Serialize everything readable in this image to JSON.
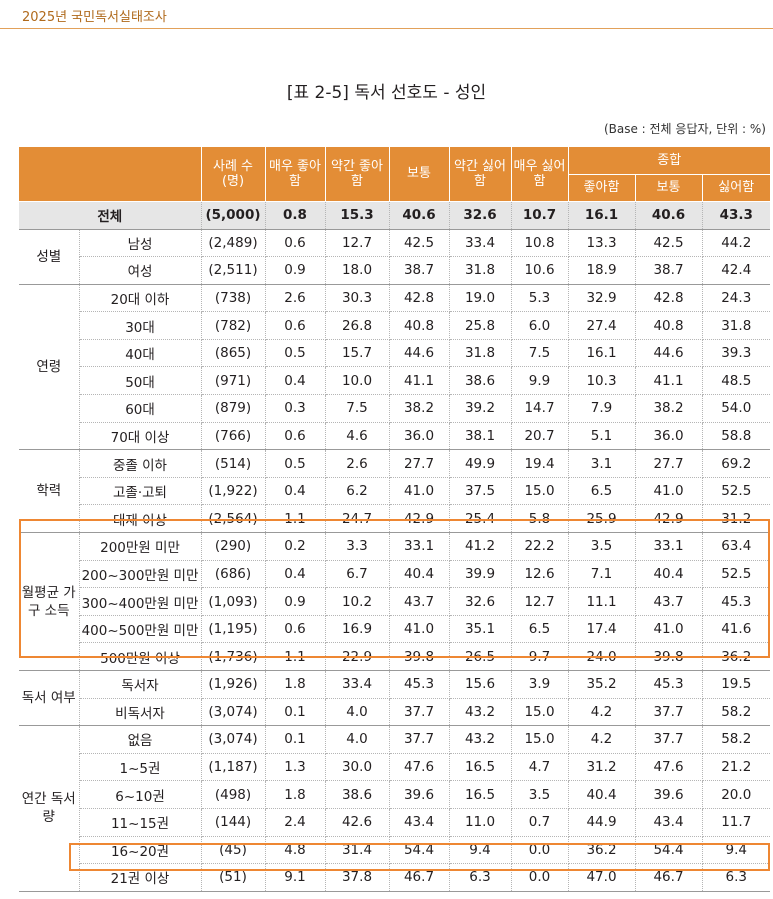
{
  "header": {
    "text": "2025년 국민독서실태조사"
  },
  "title": "[표 2-5] 독서 선호도 - 성인",
  "base_note": "(Base : 전체 응답자, 단위 : %)",
  "columns": {
    "cases": "사례 수 (명)",
    "very_like": "매우 좋아함",
    "some_like": "약간 좋아함",
    "neutral": "보통",
    "some_dislike": "약간 싫어함",
    "very_dislike": "매우 싫어함",
    "summary": "종합",
    "sum_like": "좋아함",
    "sum_neutral": "보통",
    "sum_dislike": "싫어함"
  },
  "total": {
    "label": "전체",
    "values": [
      "(5,000)",
      "0.8",
      "15.3",
      "40.6",
      "32.6",
      "10.7",
      "16.1",
      "40.6",
      "43.3"
    ]
  },
  "groups": [
    {
      "name": "성별",
      "rows": [
        {
          "label": "남성",
          "values": [
            "(2,489)",
            "0.6",
            "12.7",
            "42.5",
            "33.4",
            "10.8",
            "13.3",
            "42.5",
            "44.2"
          ]
        },
        {
          "label": "여성",
          "values": [
            "(2,511)",
            "0.9",
            "18.0",
            "38.7",
            "31.8",
            "10.6",
            "18.9",
            "38.7",
            "42.4"
          ]
        }
      ]
    },
    {
      "name": "연령",
      "rows": [
        {
          "label": "20대 이하",
          "values": [
            "(738)",
            "2.6",
            "30.3",
            "42.8",
            "19.0",
            "5.3",
            "32.9",
            "42.8",
            "24.3"
          ]
        },
        {
          "label": "30대",
          "values": [
            "(782)",
            "0.6",
            "26.8",
            "40.8",
            "25.8",
            "6.0",
            "27.4",
            "40.8",
            "31.8"
          ]
        },
        {
          "label": "40대",
          "values": [
            "(865)",
            "0.5",
            "15.7",
            "44.6",
            "31.8",
            "7.5",
            "16.1",
            "44.6",
            "39.3"
          ]
        },
        {
          "label": "50대",
          "values": [
            "(971)",
            "0.4",
            "10.0",
            "41.1",
            "38.6",
            "9.9",
            "10.3",
            "41.1",
            "48.5"
          ]
        },
        {
          "label": "60대",
          "values": [
            "(879)",
            "0.3",
            "7.5",
            "38.2",
            "39.2",
            "14.7",
            "7.9",
            "38.2",
            "54.0"
          ]
        },
        {
          "label": "70대 이상",
          "values": [
            "(766)",
            "0.6",
            "4.6",
            "36.0",
            "38.1",
            "20.7",
            "5.1",
            "36.0",
            "58.8"
          ]
        }
      ]
    },
    {
      "name": "학력",
      "rows": [
        {
          "label": "중졸 이하",
          "values": [
            "(514)",
            "0.5",
            "2.6",
            "27.7",
            "49.9",
            "19.4",
            "3.1",
            "27.7",
            "69.2"
          ]
        },
        {
          "label": "고졸·고퇴",
          "values": [
            "(1,922)",
            "0.4",
            "6.2",
            "41.0",
            "37.5",
            "15.0",
            "6.5",
            "41.0",
            "52.5"
          ]
        },
        {
          "label": "대재 이상",
          "values": [
            "(2,564)",
            "1.1",
            "24.7",
            "42.9",
            "25.4",
            "5.8",
            "25.9",
            "42.9",
            "31.2"
          ]
        }
      ]
    },
    {
      "name": "월평균 가구 소득",
      "rows": [
        {
          "label": "200만원 미만",
          "values": [
            "(290)",
            "0.2",
            "3.3",
            "33.1",
            "41.2",
            "22.2",
            "3.5",
            "33.1",
            "63.4"
          ]
        },
        {
          "label": "200~300만원 미만",
          "values": [
            "(686)",
            "0.4",
            "6.7",
            "40.4",
            "39.9",
            "12.6",
            "7.1",
            "40.4",
            "52.5"
          ]
        },
        {
          "label": "300~400만원 미만",
          "values": [
            "(1,093)",
            "0.9",
            "10.2",
            "43.7",
            "32.6",
            "12.7",
            "11.1",
            "43.7",
            "45.3"
          ]
        },
        {
          "label": "400~500만원 미만",
          "values": [
            "(1,195)",
            "0.6",
            "16.9",
            "41.0",
            "35.1",
            "6.5",
            "17.4",
            "41.0",
            "41.6"
          ]
        },
        {
          "label": "500만원 이상",
          "values": [
            "(1,736)",
            "1.1",
            "22.9",
            "39.8",
            "26.5",
            "9.7",
            "24.0",
            "39.8",
            "36.2"
          ]
        }
      ]
    },
    {
      "name": "독서 여부",
      "rows": [
        {
          "label": "독서자",
          "values": [
            "(1,926)",
            "1.8",
            "33.4",
            "45.3",
            "15.6",
            "3.9",
            "35.2",
            "45.3",
            "19.5"
          ]
        },
        {
          "label": "비독서자",
          "values": [
            "(3,074)",
            "0.1",
            "4.0",
            "37.7",
            "43.2",
            "15.0",
            "4.2",
            "37.7",
            "58.2"
          ]
        }
      ]
    },
    {
      "name": "연간 독서량",
      "rows": [
        {
          "label": "없음",
          "values": [
            "(3,074)",
            "0.1",
            "4.0",
            "37.7",
            "43.2",
            "15.0",
            "4.2",
            "37.7",
            "58.2"
          ]
        },
        {
          "label": "1~5권",
          "values": [
            "(1,187)",
            "1.3",
            "30.0",
            "47.6",
            "16.5",
            "4.7",
            "31.2",
            "47.6",
            "21.2"
          ]
        },
        {
          "label": "6~10권",
          "values": [
            "(498)",
            "1.8",
            "38.6",
            "39.6",
            "16.5",
            "3.5",
            "40.4",
            "39.6",
            "20.0"
          ]
        },
        {
          "label": "11~15권",
          "values": [
            "(144)",
            "2.4",
            "42.6",
            "43.4",
            "11.0",
            "0.7",
            "44.9",
            "43.4",
            "11.7"
          ]
        },
        {
          "label": "16~20권",
          "values": [
            "(45)",
            "4.8",
            "31.4",
            "54.4",
            "9.4",
            "0.0",
            "36.2",
            "54.4",
            "9.4"
          ]
        },
        {
          "label": "21권 이상",
          "values": [
            "(51)",
            "9.1",
            "37.8",
            "46.7",
            "6.3",
            "0.0",
            "47.0",
            "46.7",
            "6.3"
          ]
        }
      ]
    }
  ],
  "colors": {
    "accent": "#e38d36",
    "highlight_border": "#ee8733",
    "header_text": "#b06a1c",
    "total_bg": "#e6e6e6"
  }
}
